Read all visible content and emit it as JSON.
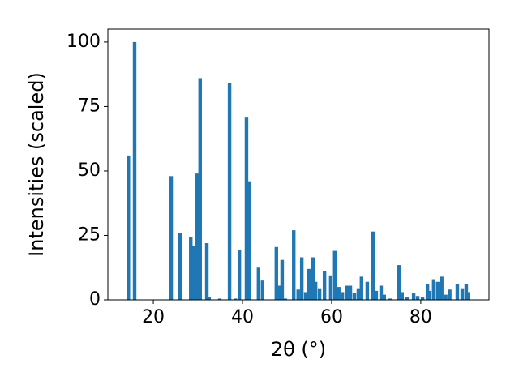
{
  "chart_data": {
    "type": "bar",
    "xlabel": "2θ (°)",
    "ylabel": "Intensities (scaled)",
    "color": "#1f77b4",
    "x": [
      14.4,
      15.8,
      24.0,
      26.0,
      28.4,
      29.1,
      29.8,
      30.5,
      32.0,
      32.5,
      34.9,
      37.1,
      38.4,
      39.3,
      40.9,
      41.5,
      43.6,
      44.5,
      47.6,
      48.4,
      48.9,
      49.6,
      51.5,
      52.5,
      53.3,
      54.2,
      54.9,
      55.8,
      56.4,
      57.3,
      58.4,
      59.8,
      60.7,
      61.6,
      62.4,
      63.5,
      64.2,
      65.1,
      66.0,
      66.7,
      68.0,
      69.3,
      70.0,
      71.1,
      71.8,
      73.1,
      75.1,
      75.8,
      76.9,
      78.4,
      79.3,
      80.4,
      81.5,
      82.0,
      82.9,
      83.8,
      84.7,
      85.6,
      86.5,
      88.2,
      89.3,
      90.2,
      90.7
    ],
    "values": [
      56,
      100,
      48,
      26,
      24.5,
      21,
      49,
      86,
      22,
      1,
      0.5,
      84,
      0.5,
      19.5,
      71,
      46,
      12.5,
      7.5,
      20.5,
      5.5,
      15.5,
      0.5,
      27,
      4,
      16.5,
      3,
      12,
      16.5,
      7,
      4.5,
      11,
      9.5,
      19,
      5,
      3,
      5.5,
      5.5,
      2.5,
      4.5,
      9,
      7,
      26.5,
      3.5,
      5.5,
      2,
      0.5,
      13.5,
      3,
      1,
      2.5,
      1.5,
      1,
      6,
      3.5,
      8,
      7,
      9,
      2,
      4,
      6,
      4.5,
      6,
      3
    ],
    "xlim": [
      9.8,
      95.3
    ],
    "xticks": [
      20,
      40,
      60,
      80
    ],
    "ylim": [
      0,
      105
    ],
    "yticks": [
      0,
      25,
      50,
      75,
      100
    ]
  }
}
